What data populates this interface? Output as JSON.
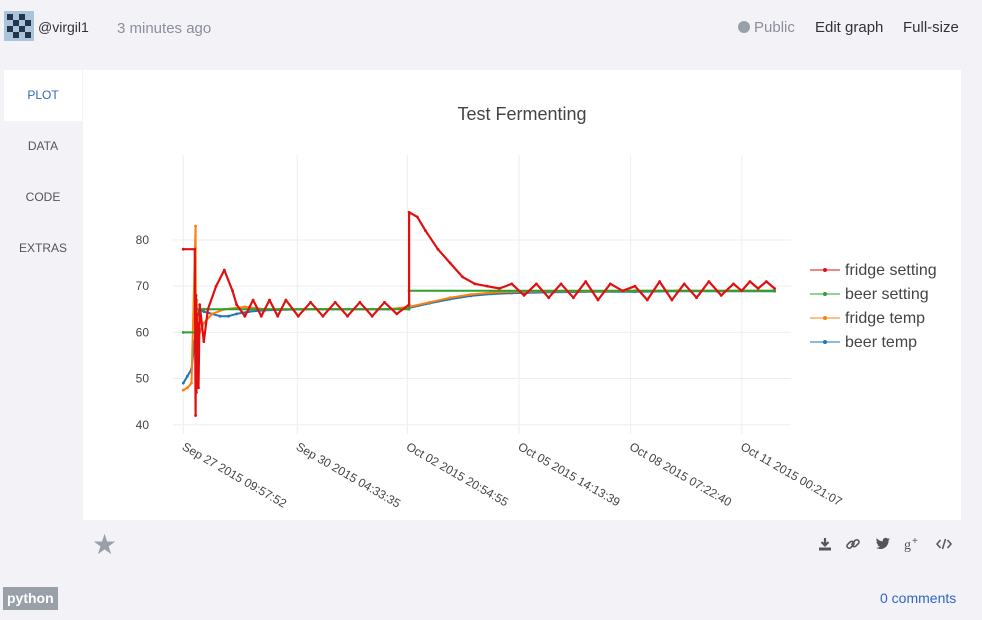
{
  "header": {
    "username": "@virgil1",
    "time_ago": "3 minutes ago",
    "visibility": "Public",
    "edit_graph": "Edit graph",
    "full_size": "Full-size"
  },
  "tabs": [
    "PLOT",
    "DATA",
    "CODE",
    "EXTRAS"
  ],
  "active_tab": "PLOT",
  "footer": {
    "tag": "python",
    "comments": "0 comments"
  },
  "icons": [
    "star-icon",
    "download-icon",
    "link-icon",
    "twitter-icon",
    "google-plus-icon",
    "embed-icon"
  ],
  "colors": {
    "accent": "#2f67c0",
    "fridge_setting": "#e01010",
    "beer_setting": "#2ca02c",
    "fridge_temp": "#ff7f0e",
    "beer_temp": "#1f77b4"
  },
  "chart_data": {
    "type": "line",
    "title": "Test Fermenting",
    "xlabel": "",
    "ylabel": "",
    "ylim": [
      38,
      88
    ],
    "yticks": [
      40,
      50,
      60,
      70,
      80
    ],
    "xlim_days": [
      -0.25,
      14.8
    ],
    "xticks": [
      {
        "label": "Sep 27 2015 09:57:52",
        "day": 0
      },
      {
        "label": "Sep 30 2015 04:33:35",
        "day": 2.775
      },
      {
        "label": "Oct 02 2015 20:54:55",
        "day": 5.457
      },
      {
        "label": "Oct 05 2015 14:13:39",
        "day": 8.179
      },
      {
        "label": "Oct 08 2015 07:22:40",
        "day": 10.894
      },
      {
        "label": "Oct 11 2015 00:21:07",
        "day": 13.602
      }
    ],
    "grid": true,
    "legend_position": "right",
    "series": [
      {
        "name": "fridge setting",
        "color": "#e01010",
        "x": [
          0,
          0.28,
          0.29,
          0.3,
          0.31,
          0.32,
          0.33,
          0.34,
          0.35,
          0.37,
          0.4,
          0.5,
          0.6,
          0.8,
          1.0,
          1.2,
          1.3,
          1.5,
          1.7,
          1.9,
          2.1,
          2.3,
          2.5,
          2.8,
          3.1,
          3.4,
          3.7,
          4.0,
          4.3,
          4.6,
          4.9,
          5.2,
          5.5,
          5.5,
          5.7,
          5.9,
          6.2,
          6.5,
          6.8,
          7.1,
          7.4,
          7.7,
          8.0,
          8.3,
          8.6,
          8.9,
          9.2,
          9.5,
          9.8,
          10.1,
          10.4,
          10.7,
          11.0,
          11.3,
          11.6,
          11.9,
          12.2,
          12.5,
          12.8,
          13.1,
          13.4,
          13.6,
          13.8,
          14.0,
          14.2,
          14.4
        ],
        "y": [
          78,
          78,
          58,
          42,
          68,
          47,
          64,
          52,
          62,
          48,
          66,
          58,
          65,
          70,
          73.5,
          69,
          66,
          63.5,
          67,
          63.5,
          67,
          63.5,
          67,
          63.5,
          66.5,
          63.5,
          66.5,
          63.5,
          66.5,
          63.5,
          66.5,
          64,
          66,
          86,
          85,
          82,
          78,
          75,
          72,
          70.5,
          70,
          69.5,
          70.5,
          68,
          70.5,
          67.5,
          70.5,
          67.5,
          71,
          67,
          70.5,
          69,
          70,
          67,
          71,
          67,
          70.5,
          67.5,
          71,
          68,
          70.5,
          69,
          71,
          69.5,
          71,
          69.5
        ]
      },
      {
        "name": "beer setting",
        "color": "#2ca02c",
        "x": [
          0,
          0.3,
          0.3,
          0.5,
          0.5,
          5.5,
          5.5,
          14.4
        ],
        "y": [
          60,
          60,
          65,
          65,
          65,
          65,
          69,
          69
        ]
      },
      {
        "name": "fridge temp",
        "color": "#ff7f0e",
        "x": [
          0,
          0.1,
          0.2,
          0.3,
          0.31,
          0.33,
          0.35,
          0.4,
          0.5,
          0.7,
          1.0,
          1.5,
          2.0,
          3.0,
          4.0,
          5.0,
          5.5,
          6.0,
          6.5,
          7.0,
          7.5,
          8.0,
          9.0,
          10.0,
          11.0,
          12.0,
          13.0,
          14.4
        ],
        "y": [
          47.5,
          48,
          49,
          83,
          55,
          67,
          58,
          60,
          62,
          64,
          65,
          65.5,
          65,
          65,
          65,
          65,
          65.5,
          66.5,
          67.5,
          68.2,
          68.6,
          68.8,
          68.9,
          68.9,
          69,
          69,
          69,
          69
        ]
      },
      {
        "name": "beer temp",
        "color": "#1f77b4",
        "x": [
          0,
          0.1,
          0.2,
          0.3,
          0.32,
          0.35,
          0.4,
          0.5,
          0.7,
          0.9,
          1.1,
          1.3,
          1.6,
          2.0,
          3.0,
          4.0,
          5.0,
          5.5,
          6.0,
          6.5,
          7.0,
          7.5,
          8.0,
          9.0,
          10.0,
          11.0,
          12.0,
          13.0,
          14.4
        ],
        "y": [
          49,
          50.5,
          52,
          60,
          62,
          64,
          65,
          64.5,
          64,
          63.5,
          63.5,
          64,
          64.5,
          64.8,
          65,
          65,
          65,
          65.3,
          66.3,
          67.2,
          67.9,
          68.3,
          68.5,
          68.7,
          68.8,
          68.8,
          68.9,
          68.9,
          68.9
        ]
      }
    ]
  }
}
